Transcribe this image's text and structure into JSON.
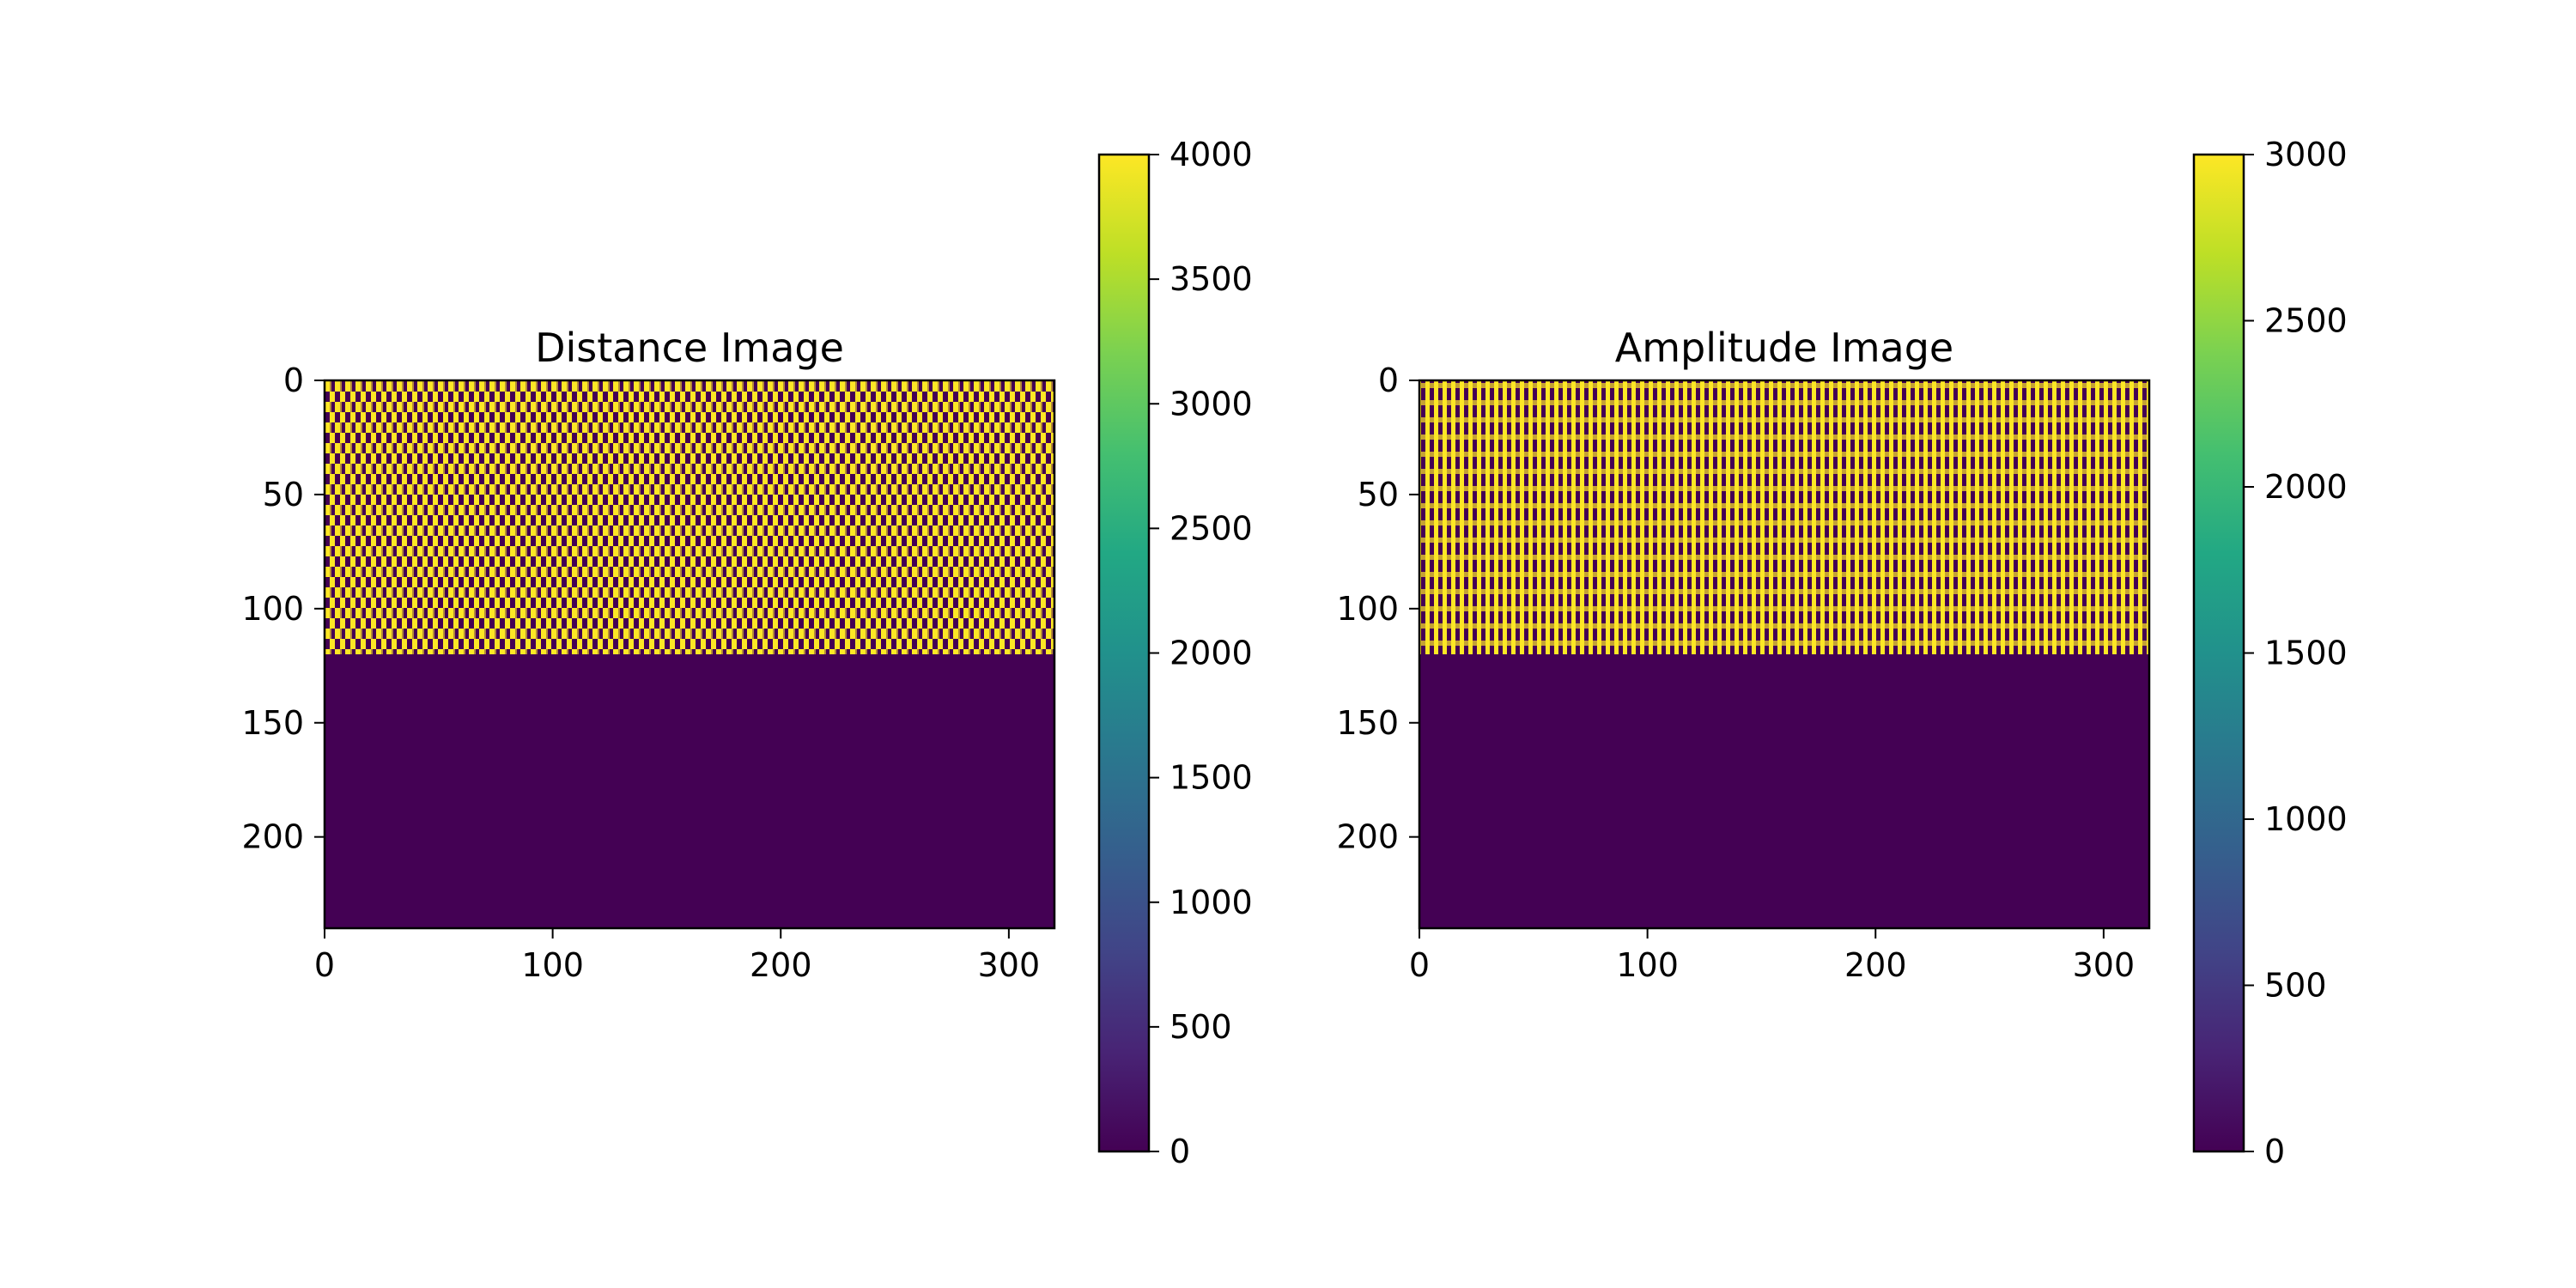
{
  "chart_data": [
    {
      "type": "heatmap",
      "title": "Distance Image",
      "colormap": "viridis",
      "xlim": [
        0,
        320
      ],
      "ylim": [
        240,
        0
      ],
      "xticks": [
        0,
        100,
        200,
        300
      ],
      "xtick_labels": [
        "0",
        "100",
        "200",
        "300"
      ],
      "yticks": [
        0,
        50,
        100,
        150,
        200
      ],
      "ytick_labels": [
        "0",
        "50",
        "100",
        "150",
        "200"
      ],
      "image_rows": 240,
      "image_cols": 320,
      "regions": [
        {
          "rows": [
            0,
            120
          ],
          "pattern": "alternating",
          "values": [
            0,
            4000
          ]
        },
        {
          "rows": [
            120,
            240
          ],
          "pattern": "uniform",
          "value": 0
        }
      ],
      "colorbar": {
        "range": [
          0,
          4000
        ],
        "ticks": [
          0,
          500,
          1000,
          1500,
          2000,
          2500,
          3000,
          3500,
          4000
        ],
        "tick_labels": [
          "0",
          "500",
          "1000",
          "1500",
          "2000",
          "2500",
          "3000",
          "3500",
          "4000"
        ]
      }
    },
    {
      "type": "heatmap",
      "title": "Amplitude Image",
      "colormap": "viridis",
      "xlim": [
        0,
        320
      ],
      "ylim": [
        240,
        0
      ],
      "xticks": [
        0,
        100,
        200,
        300
      ],
      "xtick_labels": [
        "0",
        "100",
        "200",
        "300"
      ],
      "yticks": [
        0,
        50,
        100,
        150,
        200
      ],
      "ytick_labels": [
        "0",
        "50",
        "100",
        "150",
        "200"
      ],
      "image_rows": 240,
      "image_cols": 320,
      "regions": [
        {
          "rows": [
            0,
            120
          ],
          "pattern": "alternating",
          "values": [
            0,
            3000
          ]
        },
        {
          "rows": [
            120,
            240
          ],
          "pattern": "uniform",
          "value": 0
        }
      ],
      "colorbar": {
        "range": [
          0,
          3000
        ],
        "ticks": [
          0,
          500,
          1000,
          1500,
          2000,
          2500,
          3000
        ],
        "tick_labels": [
          "0",
          "500",
          "1000",
          "1500",
          "2000",
          "2500",
          "3000"
        ]
      }
    }
  ]
}
